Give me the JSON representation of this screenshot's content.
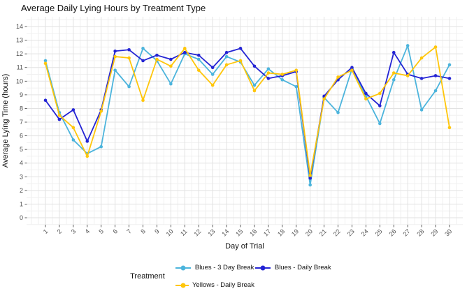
{
  "title": "Average Daily Lying Hours by Treatment Type",
  "legend": {
    "title": "Treatment"
  },
  "chart_data": {
    "type": "line",
    "title": "Average Daily Lying Hours by Treatment Type",
    "xlabel": "Day of Trial",
    "ylabel": "Average Lying Time (hours)",
    "xlim": [
      1,
      30
    ],
    "ylim": [
      0,
      14
    ],
    "grid": "major and minor, light gray on white",
    "legend_position": "bottom",
    "legend_title": "Treatment",
    "x": [
      1,
      2,
      3,
      4,
      5,
      6,
      7,
      8,
      9,
      10,
      11,
      12,
      13,
      14,
      15,
      16,
      17,
      18,
      19,
      20,
      21,
      22,
      23,
      24,
      25,
      26,
      27,
      28,
      29,
      30
    ],
    "xticks": [
      1,
      2,
      3,
      4,
      5,
      6,
      7,
      8,
      9,
      10,
      11,
      12,
      13,
      14,
      15,
      16,
      17,
      18,
      19,
      20,
      21,
      22,
      23,
      24,
      25,
      26,
      27,
      28,
      29,
      30
    ],
    "yticks": [
      0,
      1,
      2,
      3,
      4,
      5,
      6,
      7,
      8,
      9,
      10,
      11,
      12,
      13,
      14
    ],
    "series": [
      {
        "name": "Blues - 3 Day Break",
        "color": "#4CB4DC",
        "values": [
          11.5,
          7.7,
          5.7,
          4.7,
          5.2,
          10.8,
          9.6,
          12.4,
          11.5,
          9.8,
          12.0,
          11.6,
          10.5,
          11.8,
          11.4,
          9.7,
          10.9,
          10.1,
          9.6,
          2.4,
          8.8,
          7.7,
          10.9,
          8.9,
          6.9,
          10.1,
          12.6,
          7.9,
          9.3,
          11.2
        ]
      },
      {
        "name": "Blues - Daily Break",
        "color": "#2424D4",
        "values": [
          8.6,
          7.2,
          7.9,
          5.6,
          7.9,
          12.2,
          12.3,
          11.5,
          11.9,
          11.6,
          12.1,
          11.9,
          11.0,
          12.1,
          12.4,
          11.1,
          10.2,
          10.4,
          10.7,
          2.9,
          8.9,
          10.1,
          11.0,
          9.1,
          8.2,
          12.1,
          10.5,
          10.2,
          10.4,
          10.2
        ]
      },
      {
        "name": "Yellows - Daily Break",
        "color": "#FFC60A",
        "values": [
          11.3,
          7.5,
          6.6,
          4.5,
          7.8,
          11.8,
          11.7,
          8.6,
          11.6,
          11.1,
          12.4,
          10.8,
          9.7,
          11.2,
          11.5,
          9.3,
          10.6,
          10.5,
          10.8,
          3.1,
          8.7,
          10.3,
          10.8,
          8.7,
          9.1,
          10.6,
          10.4,
          11.7,
          12.5,
          6.6
        ]
      }
    ]
  }
}
